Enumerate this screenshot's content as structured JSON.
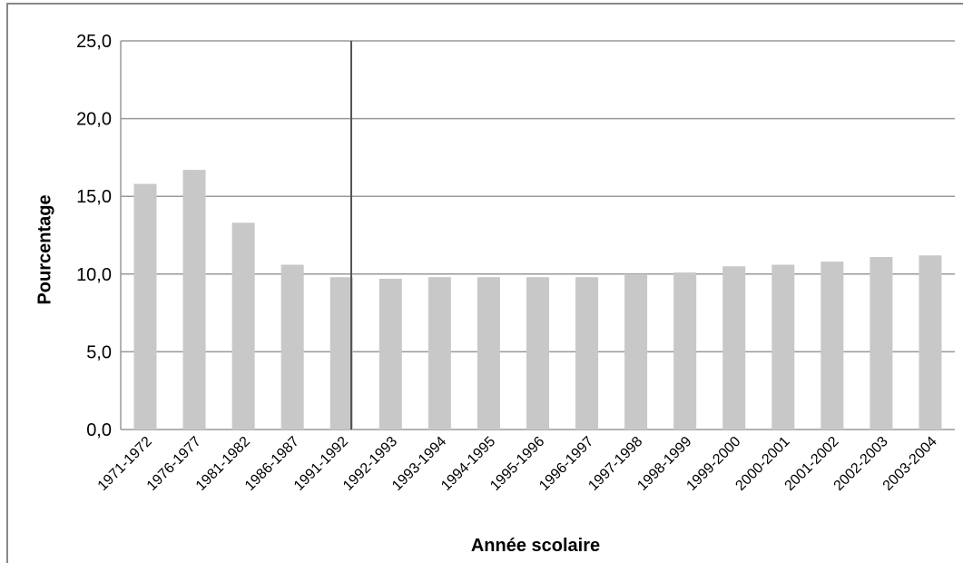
{
  "chart_data": {
    "type": "bar",
    "x_label": "Année scolaire",
    "y_label": "Pourcentage",
    "categories": [
      "1971-1972",
      "1976-1977",
      "1981-1982",
      "1986-1987",
      "1991-1992",
      "1992-1993",
      "1993-1994",
      "1994-1995",
      "1995-1996",
      "1996-1997",
      "1997-1998",
      "1998-1999",
      "1999-2000",
      "2000-2001",
      "2001-2002",
      "2002-2003",
      "2003-2004"
    ],
    "values": [
      15.8,
      16.7,
      13.3,
      10.6,
      9.8,
      9.7,
      9.8,
      9.8,
      9.8,
      9.8,
      10.0,
      10.1,
      10.5,
      10.6,
      10.8,
      11.1,
      11.2
    ],
    "color": "#c8c8c8",
    "ylim": [
      0,
      25
    ],
    "yticks": [
      {
        "value": 0,
        "label": "0,0"
      },
      {
        "value": 5,
        "label": "5,0"
      },
      {
        "value": 10,
        "label": "10,0"
      },
      {
        "value": 15,
        "label": "15,0"
      },
      {
        "value": 20,
        "label": "20,0"
      },
      {
        "value": 25,
        "label": "25,0"
      }
    ],
    "grid": true
  }
}
